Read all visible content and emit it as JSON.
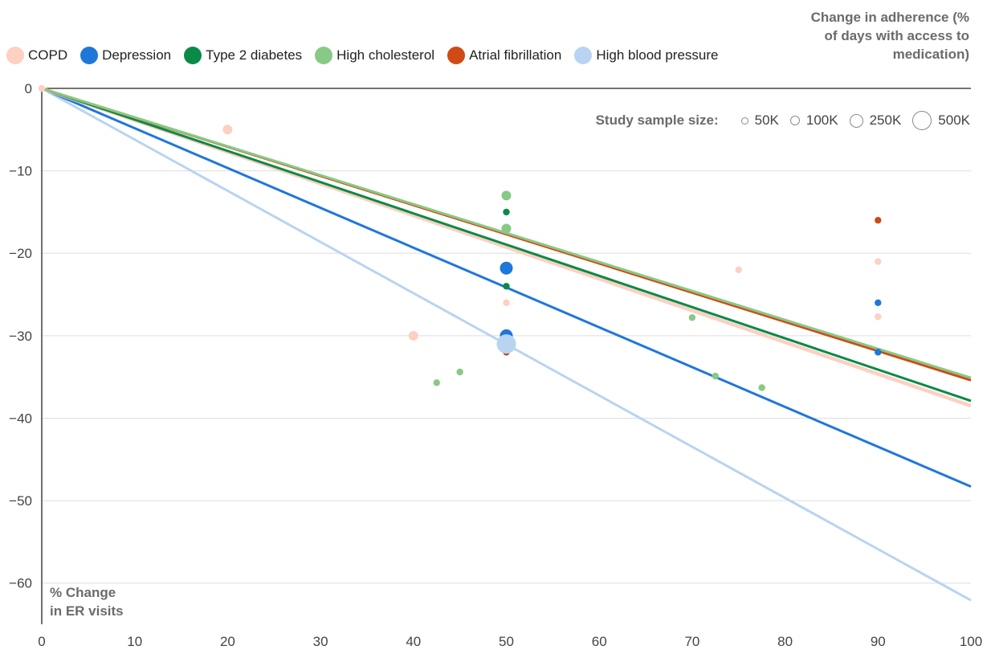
{
  "chart_data": {
    "type": "scatter",
    "y_title": "Change in adherence (% of days with access to medication)",
    "x_title": "% Change in ER visits",
    "xlim": [
      0,
      100
    ],
    "ylim": [
      -65,
      0
    ],
    "x_ticks": [
      0,
      10,
      20,
      30,
      40,
      50,
      60,
      70,
      80,
      90,
      100
    ],
    "y_ticks": [
      0,
      -10,
      -20,
      -30,
      -40,
      -50,
      -60
    ],
    "grid": true,
    "legend_position": "top-left",
    "size_legend": {
      "title": "Study sample size:",
      "items": [
        {
          "label": "50K",
          "value": 50000
        },
        {
          "label": "100K",
          "value": 100000
        },
        {
          "label": "250K",
          "value": 250000
        },
        {
          "label": "500K",
          "value": 500000
        }
      ]
    },
    "series": [
      {
        "name": "COPD",
        "color": "#fdd0c2",
        "trend": [
          [
            0,
            0
          ],
          [
            100,
            -38.5
          ]
        ],
        "points": [
          [
            0,
            0,
            50000
          ],
          [
            20,
            -5,
            100000
          ],
          [
            40,
            -30,
            100000
          ],
          [
            50,
            -22,
            100000
          ],
          [
            50,
            -26,
            50000
          ],
          [
            75,
            -22,
            50000
          ],
          [
            90,
            -21,
            50000
          ],
          [
            90,
            -27.7,
            50000
          ]
        ]
      },
      {
        "name": "Depression",
        "color": "#1f77d9",
        "trend": [
          [
            0,
            0
          ],
          [
            100,
            -48.3
          ]
        ],
        "points": [
          [
            50,
            -21.8,
            250000
          ],
          [
            50,
            -30,
            250000
          ],
          [
            90,
            -26,
            50000
          ],
          [
            90,
            -32,
            50000
          ]
        ]
      },
      {
        "name": "Type 2 diabetes",
        "color": "#0a8a47",
        "trend": [
          [
            0,
            0
          ],
          [
            100,
            -37.9
          ]
        ],
        "points": [
          [
            50,
            -15,
            50000
          ],
          [
            50,
            -24,
            50000
          ]
        ]
      },
      {
        "name": "High cholesterol",
        "color": "#88c985",
        "trend": [
          [
            0,
            0
          ],
          [
            100,
            -35.1
          ]
        ],
        "points": [
          [
            50,
            -13,
            100000
          ],
          [
            50,
            -17,
            100000
          ],
          [
            42.5,
            -35.7,
            50000
          ],
          [
            45,
            -34.4,
            50000
          ],
          [
            70,
            -27.8,
            50000
          ],
          [
            72.5,
            -34.9,
            50000
          ],
          [
            77.5,
            -36.3,
            50000
          ]
        ]
      },
      {
        "name": "Atrial fibrillation",
        "color": "#cf4a14",
        "trend": [
          [
            0,
            0
          ],
          [
            100,
            -35.4
          ]
        ],
        "points": [
          [
            50,
            -32,
            50000
          ],
          [
            90,
            -16,
            50000
          ]
        ]
      },
      {
        "name": "High blood pressure",
        "color": "#b8d4f1",
        "trend": [
          [
            0,
            0
          ],
          [
            100,
            -62.1
          ]
        ],
        "points": [
          [
            50,
            -31,
            500000
          ]
        ]
      }
    ]
  }
}
